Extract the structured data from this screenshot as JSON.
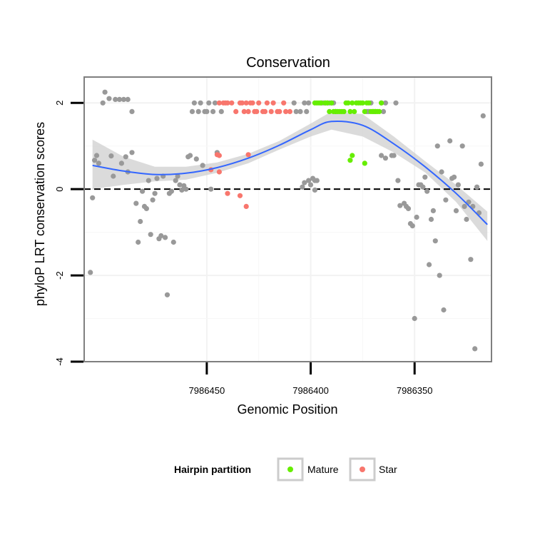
{
  "chart_data": {
    "type": "scatter",
    "title": "Conservation",
    "xlabel": "Genomic Position",
    "ylabel": "phyloP LRT conservation scores",
    "x_reversed": true,
    "xlim": [
      7986509,
      7986313
    ],
    "ylim": [
      -4.0,
      2.6
    ],
    "x_ticks": [
      7986450,
      7986400,
      7986350
    ],
    "x_tick_labels": [
      "7986450",
      "7986400",
      "7986350"
    ],
    "y_ticks": [
      -4,
      -2,
      0,
      2
    ],
    "y_tick_labels": [
      "-4",
      "-2",
      "0",
      "2"
    ],
    "reference_line": {
      "y": 0,
      "style": "dashed",
      "color": "#000000"
    },
    "grid": true,
    "legend": {
      "title": "Hairpin partition",
      "position": "bottom",
      "entries": [
        {
          "label": "Mature",
          "color": "#66ee00"
        },
        {
          "label": "Star",
          "color": "#f8766d"
        }
      ]
    },
    "colors": {
      "other": "#999999",
      "mature": "#66ee00",
      "star": "#f8766d",
      "smooth": "#3366ff",
      "band": "#cccccc"
    },
    "smooth": {
      "x": [
        7986505,
        7986490,
        7986475,
        7986460,
        7986445,
        7986430,
        7986415,
        7986400,
        7986390,
        7986375,
        7986360,
        7986345,
        7986330,
        7986315
      ],
      "y": [
        0.55,
        0.42,
        0.34,
        0.37,
        0.5,
        0.72,
        1.02,
        1.38,
        1.57,
        1.48,
        1.05,
        0.52,
        -0.1,
        -0.82
      ],
      "upper": [
        1.15,
        0.75,
        0.52,
        0.52,
        0.62,
        0.82,
        1.12,
        1.52,
        1.8,
        1.74,
        1.22,
        0.65,
        0.1,
        -0.52
      ],
      "lower": [
        0.0,
        0.1,
        0.18,
        0.22,
        0.38,
        0.6,
        0.92,
        1.22,
        1.38,
        1.22,
        0.85,
        0.39,
        -0.3,
        -1.2
      ]
    },
    "series": [
      {
        "name": "Other",
        "color": "#999999",
        "points": [
          [
            7986504,
            0.67
          ],
          [
            7986503,
            0.78
          ],
          [
            7986502,
            0.6
          ],
          [
            7986505,
            -0.2
          ],
          [
            7986506,
            -1.93
          ],
          [
            7986500,
            2.0
          ],
          [
            7986499,
            2.25
          ],
          [
            7986497,
            2.1
          ],
          [
            7986494,
            2.08
          ],
          [
            7986492,
            2.08
          ],
          [
            7986490,
            2.08
          ],
          [
            7986488,
            2.08
          ],
          [
            7986486,
            1.8
          ],
          [
            7986496,
            0.77
          ],
          [
            7986495,
            0.3
          ],
          [
            7986491,
            0.6
          ],
          [
            7986489,
            0.75
          ],
          [
            7986488,
            0.4
          ],
          [
            7986486,
            0.85
          ],
          [
            7986484,
            -0.33
          ],
          [
            7986483,
            -1.23
          ],
          [
            7986482,
            -0.75
          ],
          [
            7986481,
            -0.05
          ],
          [
            7986480,
            -0.4
          ],
          [
            7986479,
            -0.45
          ],
          [
            7986478,
            0.2
          ],
          [
            7986477,
            -1.05
          ],
          [
            7986476,
            -0.25
          ],
          [
            7986475,
            -0.1
          ],
          [
            7986474,
            0.25
          ],
          [
            7986473,
            -1.15
          ],
          [
            7986472,
            -1.08
          ],
          [
            7986471,
            0.3
          ],
          [
            7986470,
            -1.12
          ],
          [
            7986469,
            -2.45
          ],
          [
            7986468,
            -0.1
          ],
          [
            7986467,
            -0.05
          ],
          [
            7986466,
            -1.23
          ],
          [
            7986465,
            0.2
          ],
          [
            7986464,
            0.3
          ],
          [
            7986463,
            0.1
          ],
          [
            7986462,
            -0.02
          ],
          [
            7986461,
            0.08
          ],
          [
            7986460,
            0.0
          ],
          [
            7986459,
            0.75
          ],
          [
            7986458,
            0.78
          ],
          [
            7986457,
            1.8
          ],
          [
            7986456,
            2.0
          ],
          [
            7986455,
            0.7
          ],
          [
            7986454,
            1.8
          ],
          [
            7986453,
            2.0
          ],
          [
            7986452,
            0.55
          ],
          [
            7986451,
            1.8
          ],
          [
            7986450,
            1.8
          ],
          [
            7986449,
            2.0
          ],
          [
            7986448,
            0.0
          ],
          [
            7986447,
            1.8
          ],
          [
            7986446,
            2.0
          ],
          [
            7986445,
            0.85
          ],
          [
            7986443,
            1.8
          ],
          [
            7986408,
            2.0
          ],
          [
            7986407,
            1.8
          ],
          [
            7986405,
            1.8
          ],
          [
            7986403,
            2.0
          ],
          [
            7986402,
            1.8
          ],
          [
            7986401,
            2.0
          ],
          [
            7986400,
            0.1
          ],
          [
            7986401,
            0.2
          ],
          [
            7986399,
            0.25
          ],
          [
            7986398,
            0.2
          ],
          [
            7986397,
            0.2
          ],
          [
            7986403,
            0.15
          ],
          [
            7986404,
            0.05
          ],
          [
            7986398,
            -0.02
          ],
          [
            7986395,
            2.0
          ],
          [
            7986394,
            2.0
          ],
          [
            7986393,
            2.0
          ],
          [
            7986392,
            2.0
          ],
          [
            7986391,
            2.0
          ],
          [
            7986390,
            2.0
          ],
          [
            7986389,
            2.0
          ],
          [
            7986388,
            1.8
          ],
          [
            7986373,
            1.8
          ],
          [
            7986372,
            1.8
          ],
          [
            7986371,
            2.0
          ],
          [
            7986370,
            1.8
          ],
          [
            7986369,
            1.8
          ],
          [
            7986366,
            2.0
          ],
          [
            7986365,
            1.8
          ],
          [
            7986364,
            2.0
          ],
          [
            7986359,
            2.0
          ],
          [
            7986366,
            0.78
          ],
          [
            7986364,
            0.72
          ],
          [
            7986361,
            0.78
          ],
          [
            7986360,
            0.78
          ],
          [
            7986358,
            0.2
          ],
          [
            7986357,
            -0.38
          ],
          [
            7986355,
            -0.33
          ],
          [
            7986354,
            -0.4
          ],
          [
            7986353,
            -0.45
          ],
          [
            7986352,
            -0.8
          ],
          [
            7986351,
            -0.85
          ],
          [
            7986350,
            -3.0
          ],
          [
            7986349,
            -0.65
          ],
          [
            7986348,
            0.1
          ],
          [
            7986347,
            0.1
          ],
          [
            7986346,
            0.05
          ],
          [
            7986345,
            0.28
          ],
          [
            7986344,
            -0.05
          ],
          [
            7986343,
            -1.75
          ],
          [
            7986342,
            -0.7
          ],
          [
            7986341,
            -0.5
          ],
          [
            7986340,
            -1.2
          ],
          [
            7986339,
            1.0
          ],
          [
            7986338,
            -2.0
          ],
          [
            7986337,
            0.4
          ],
          [
            7986336,
            -2.8
          ],
          [
            7986335,
            -0.25
          ],
          [
            7986333,
            1.12
          ],
          [
            7986332,
            0.25
          ],
          [
            7986331,
            0.28
          ],
          [
            7986330,
            -0.5
          ],
          [
            7986329,
            0.1
          ],
          [
            7986327,
            1.0
          ],
          [
            7986326,
            -0.4
          ],
          [
            7986325,
            -0.7
          ],
          [
            7986324,
            -0.3
          ],
          [
            7986323,
            -1.63
          ],
          [
            7986322,
            -0.4
          ],
          [
            7986321,
            -3.7
          ],
          [
            7986320,
            0.05
          ],
          [
            7986319,
            -0.55
          ],
          [
            7986318,
            0.58
          ],
          [
            7986317,
            1.7
          ]
        ]
      },
      {
        "name": "Mature",
        "color": "#66ee00",
        "points": [
          [
            7986398,
            2.0
          ],
          [
            7986397,
            2.0
          ],
          [
            7986396,
            2.0
          ],
          [
            7986395,
            2.0
          ],
          [
            7986393,
            2.0
          ],
          [
            7986392,
            2.0
          ],
          [
            7986391,
            1.8
          ],
          [
            7986390,
            2.0
          ],
          [
            7986389,
            1.8
          ],
          [
            7986388,
            1.8
          ],
          [
            7986387,
            1.8
          ],
          [
            7986386,
            1.8
          ],
          [
            7986385,
            1.8
          ],
          [
            7986384,
            1.8
          ],
          [
            7986383,
            2.0
          ],
          [
            7986382,
            2.0
          ],
          [
            7986381,
            1.8
          ],
          [
            7986380,
            2.0
          ],
          [
            7986379,
            1.8
          ],
          [
            7986378,
            2.0
          ],
          [
            7986377,
            2.0
          ],
          [
            7986376,
            2.0
          ],
          [
            7986375,
            2.0
          ],
          [
            7986374,
            1.8
          ],
          [
            7986373,
            2.0
          ],
          [
            7986372,
            2.0
          ],
          [
            7986371,
            1.8
          ],
          [
            7986370,
            1.8
          ],
          [
            7986369,
            1.8
          ],
          [
            7986368,
            1.8
          ],
          [
            7986367,
            1.8
          ],
          [
            7986366,
            2.0
          ],
          [
            7986381,
            0.67
          ],
          [
            7986380,
            0.78
          ],
          [
            7986374,
            0.6
          ]
        ]
      },
      {
        "name": "Star",
        "color": "#f8766d",
        "points": [
          [
            7986444,
            2.0
          ],
          [
            7986442,
            2.0
          ],
          [
            7986441,
            2.0
          ],
          [
            7986440,
            2.0
          ],
          [
            7986438,
            2.0
          ],
          [
            7986436,
            1.8
          ],
          [
            7986434,
            2.0
          ],
          [
            7986433,
            2.0
          ],
          [
            7986432,
            1.8
          ],
          [
            7986431,
            2.0
          ],
          [
            7986430,
            1.8
          ],
          [
            7986429,
            2.0
          ],
          [
            7986428,
            2.0
          ],
          [
            7986427,
            1.8
          ],
          [
            7986426,
            1.8
          ],
          [
            7986425,
            2.0
          ],
          [
            7986423,
            1.8
          ],
          [
            7986422,
            1.8
          ],
          [
            7986421,
            2.0
          ],
          [
            7986419,
            1.8
          ],
          [
            7986418,
            2.0
          ],
          [
            7986416,
            1.8
          ],
          [
            7986415,
            1.8
          ],
          [
            7986413,
            2.0
          ],
          [
            7986412,
            1.8
          ],
          [
            7986410,
            1.8
          ],
          [
            7986445,
            0.8
          ],
          [
            7986444,
            0.78
          ],
          [
            7986448,
            0.45
          ],
          [
            7986444,
            0.4
          ],
          [
            7986440,
            -0.1
          ],
          [
            7986434,
            -0.15
          ],
          [
            7986431,
            -0.4
          ],
          [
            7986430,
            0.8
          ]
        ]
      }
    ]
  }
}
